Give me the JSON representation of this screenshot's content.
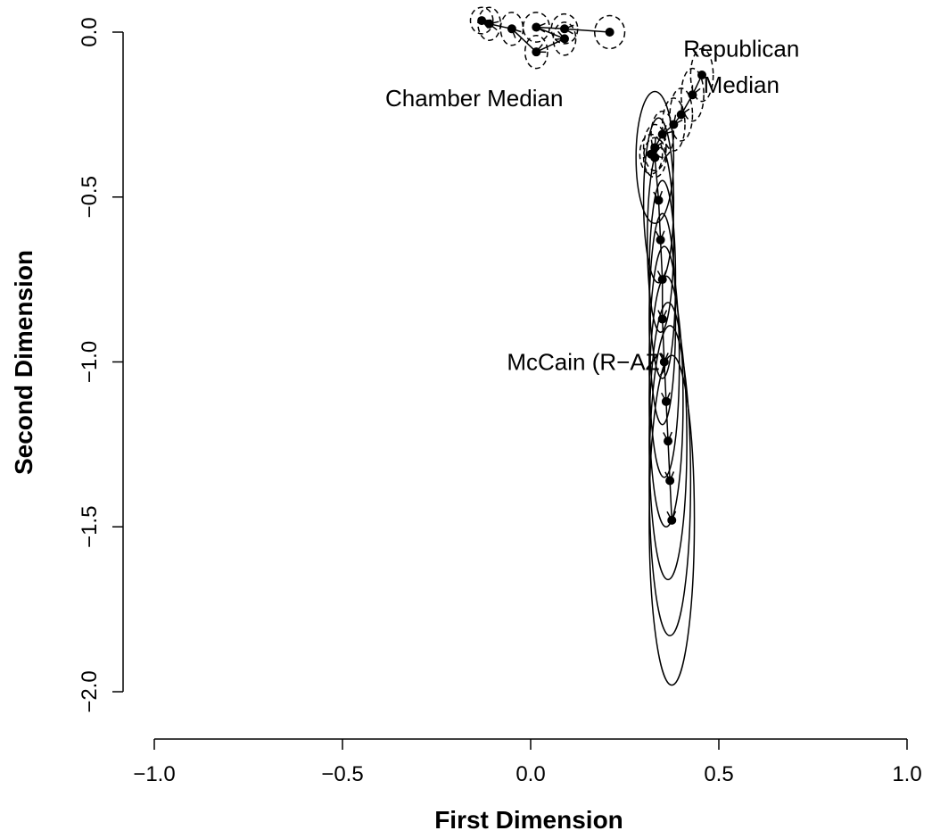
{
  "chart_data": {
    "type": "scatter",
    "xlabel": "First Dimension",
    "ylabel": "Second Dimension",
    "xlim": [
      -1.0,
      1.0
    ],
    "ylim": [
      -2.0,
      0.0
    ],
    "x_ticks": [
      -1.0,
      -0.5,
      0.0,
      0.5,
      1.0
    ],
    "x_tick_labels": [
      "−1.0",
      "−0.5",
      "0.0",
      "0.5",
      "1.0"
    ],
    "y_ticks": [
      0.0,
      -0.5,
      -1.0,
      -1.5,
      -2.0
    ],
    "y_tick_labels": [
      "0.0",
      "−0.5",
      "−1.0",
      "−1.5",
      "−2.0"
    ],
    "grid": false,
    "annotations": [
      {
        "text": "Chamber Median",
        "x": -0.15,
        "y": -0.2
      },
      {
        "text": "Republican",
        "x": 0.56,
        "y": -0.05
      },
      {
        "text": "Median",
        "x": 0.56,
        "y": -0.16
      },
      {
        "text": "McCain (R−AZ)",
        "x": 0.15,
        "y": -1.0
      }
    ],
    "series": [
      {
        "points": [
          {
            "x": 0.21,
            "y": 0.0,
            "rx": 0.04,
            "ry": 0.05
          },
          {
            "x": 0.09,
            "y": 0.01,
            "rx": 0.035,
            "ry": 0.045
          },
          {
            "x": 0.015,
            "y": 0.015,
            "rx": 0.035,
            "ry": 0.045
          },
          {
            "x": 0.09,
            "y": -0.02,
            "rx": 0.03,
            "ry": 0.05
          },
          {
            "x": 0.015,
            "y": -0.06,
            "rx": 0.03,
            "ry": 0.05
          },
          {
            "x": -0.05,
            "y": 0.01,
            "rx": 0.03,
            "ry": 0.05
          },
          {
            "x": -0.11,
            "y": 0.025,
            "rx": 0.03,
            "ry": 0.05
          },
          {
            "x": -0.13,
            "y": 0.035,
            "rx": 0.03,
            "ry": 0.04
          }
        ]
      },
      {
        "points": [
          {
            "x": 0.455,
            "y": -0.13,
            "rx": 0.03,
            "ry": 0.08
          },
          {
            "x": 0.43,
            "y": -0.19,
            "rx": 0.03,
            "ry": 0.08
          },
          {
            "x": 0.4,
            "y": -0.25,
            "rx": 0.03,
            "ry": 0.08
          },
          {
            "x": 0.38,
            "y": -0.28,
            "rx": 0.03,
            "ry": 0.08
          },
          {
            "x": 0.35,
            "y": -0.31,
            "rx": 0.03,
            "ry": 0.07
          },
          {
            "x": 0.33,
            "y": -0.35,
            "rx": 0.03,
            "ry": 0.07
          },
          {
            "x": 0.32,
            "y": -0.37,
            "rx": 0.03,
            "ry": 0.06
          },
          {
            "x": 0.33,
            "y": -0.38,
            "rx": 0.03,
            "ry": 0.06
          }
        ]
      },
      {
        "points": [
          {
            "x": 0.33,
            "y": -0.38,
            "rx": 0.05,
            "ry": 0.2
          },
          {
            "x": 0.34,
            "y": -0.51,
            "rx": 0.04,
            "ry": 0.25
          },
          {
            "x": 0.345,
            "y": -0.63,
            "rx": 0.035,
            "ry": 0.28
          },
          {
            "x": 0.35,
            "y": -0.75,
            "rx": 0.035,
            "ry": 0.3
          },
          {
            "x": 0.35,
            "y": -0.87,
            "rx": 0.035,
            "ry": 0.32
          },
          {
            "x": 0.355,
            "y": -1.0,
            "rx": 0.04,
            "ry": 0.35
          },
          {
            "x": 0.36,
            "y": -1.12,
            "rx": 0.045,
            "ry": 0.38
          },
          {
            "x": 0.365,
            "y": -1.24,
            "rx": 0.05,
            "ry": 0.42
          },
          {
            "x": 0.37,
            "y": -1.36,
            "rx": 0.055,
            "ry": 0.47
          },
          {
            "x": 0.375,
            "y": -1.48,
            "rx": 0.06,
            "ry": 0.5
          }
        ]
      }
    ]
  }
}
